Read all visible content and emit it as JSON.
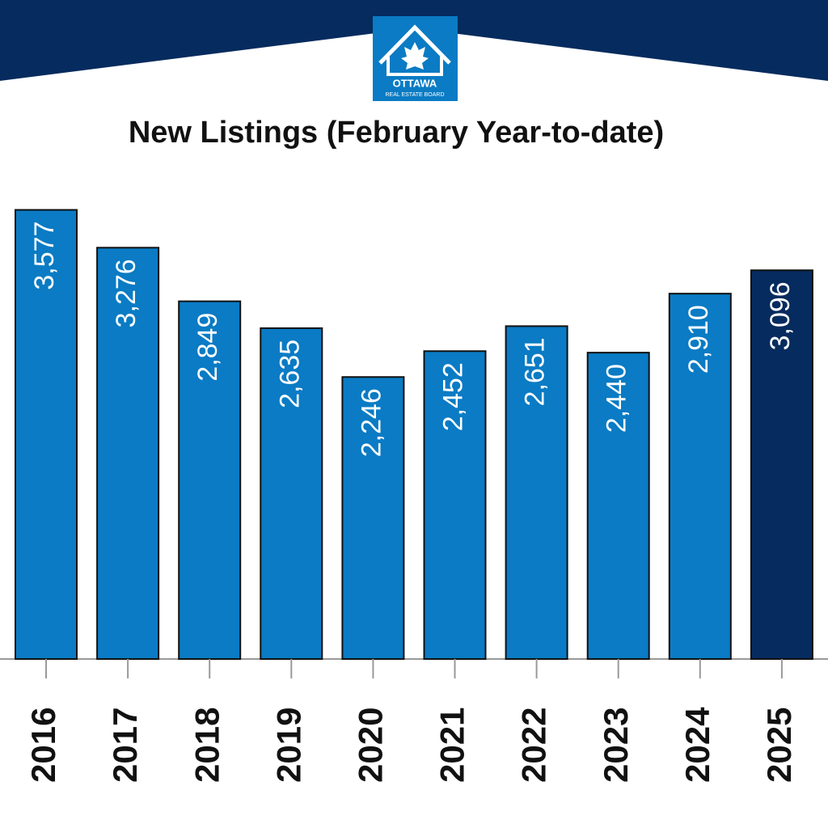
{
  "logo": {
    "name": "OTTAWA",
    "subtitle": "REAL ESTATE BOARD"
  },
  "chart_data": {
    "type": "bar",
    "title": "New Listings (February Year-to-date)",
    "categories": [
      "2016",
      "2017",
      "2018",
      "2019",
      "2020",
      "2021",
      "2022",
      "2023",
      "2024",
      "2025"
    ],
    "values": [
      3577,
      3276,
      2849,
      2635,
      2246,
      2452,
      2651,
      2440,
      2910,
      3096
    ],
    "value_labels": [
      "3,577",
      "3,276",
      "2,849",
      "2,635",
      "2,246",
      "2,452",
      "2,651",
      "2,440",
      "2,910",
      "3,096"
    ],
    "colors": [
      "#0a7bc4",
      "#0a7bc4",
      "#0a7bc4",
      "#0a7bc4",
      "#0a7bc4",
      "#0a7bc4",
      "#0a7bc4",
      "#0a7bc4",
      "#0a7bc4",
      "#062b5e"
    ],
    "ylim": [
      0,
      3600
    ]
  }
}
